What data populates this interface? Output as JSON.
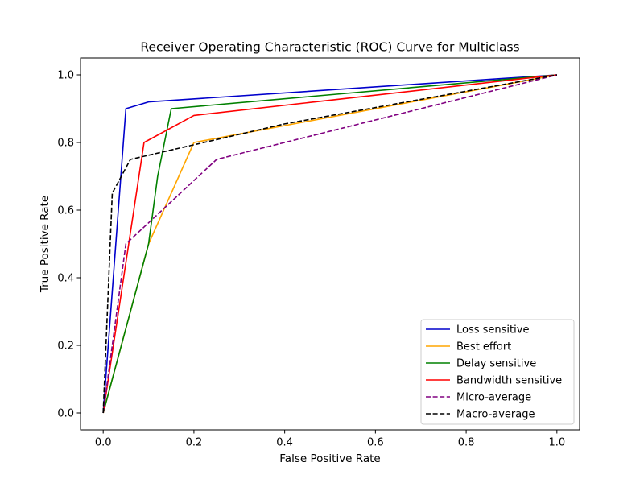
{
  "chart_data": {
    "type": "line",
    "title": "Receiver Operating Characteristic (ROC) Curve for Multiclass",
    "xlabel": "False Positive Rate",
    "ylabel": "True Positive Rate",
    "xlim": [
      -0.05,
      1.05
    ],
    "ylim": [
      -0.05,
      1.05
    ],
    "xticks": [
      "0.0",
      "0.2",
      "0.4",
      "0.6",
      "0.8",
      "1.0"
    ],
    "yticks": [
      "0.0",
      "0.2",
      "0.4",
      "0.6",
      "0.8",
      "1.0"
    ],
    "grid": false,
    "legend_position": "bottom-right",
    "series": [
      {
        "name": "Loss sensitive",
        "color": "#0000cc",
        "style": "solid",
        "points": [
          [
            0,
            0
          ],
          [
            0.05,
            0.9
          ],
          [
            0.1,
            0.92
          ],
          [
            1.0,
            1.0
          ]
        ]
      },
      {
        "name": "Best effort",
        "color": "#ffa500",
        "style": "solid",
        "points": [
          [
            0,
            0
          ],
          [
            0.1,
            0.5
          ],
          [
            0.2,
            0.8
          ],
          [
            1.0,
            1.0
          ]
        ]
      },
      {
        "name": "Delay sensitive",
        "color": "#008000",
        "style": "solid",
        "points": [
          [
            0,
            0
          ],
          [
            0.1,
            0.5
          ],
          [
            0.12,
            0.7
          ],
          [
            0.15,
            0.9
          ],
          [
            1.0,
            1.0
          ]
        ]
      },
      {
        "name": "Bandwidth sensitive",
        "color": "#ff0000",
        "style": "solid",
        "points": [
          [
            0,
            0
          ],
          [
            0.09,
            0.8
          ],
          [
            0.2,
            0.88
          ],
          [
            1.0,
            1.0
          ]
        ]
      },
      {
        "name": "Micro-average",
        "color": "#800080",
        "style": "dashed",
        "points": [
          [
            0,
            0
          ],
          [
            0.05,
            0.5
          ],
          [
            0.25,
            0.75
          ],
          [
            1.0,
            1.0
          ]
        ]
      },
      {
        "name": "Macro-average",
        "color": "#000000",
        "style": "dashed",
        "points": [
          [
            0,
            0
          ],
          [
            0.02,
            0.65
          ],
          [
            0.06,
            0.75
          ],
          [
            0.4,
            0.855
          ],
          [
            1.0,
            1.0
          ]
        ]
      }
    ]
  }
}
